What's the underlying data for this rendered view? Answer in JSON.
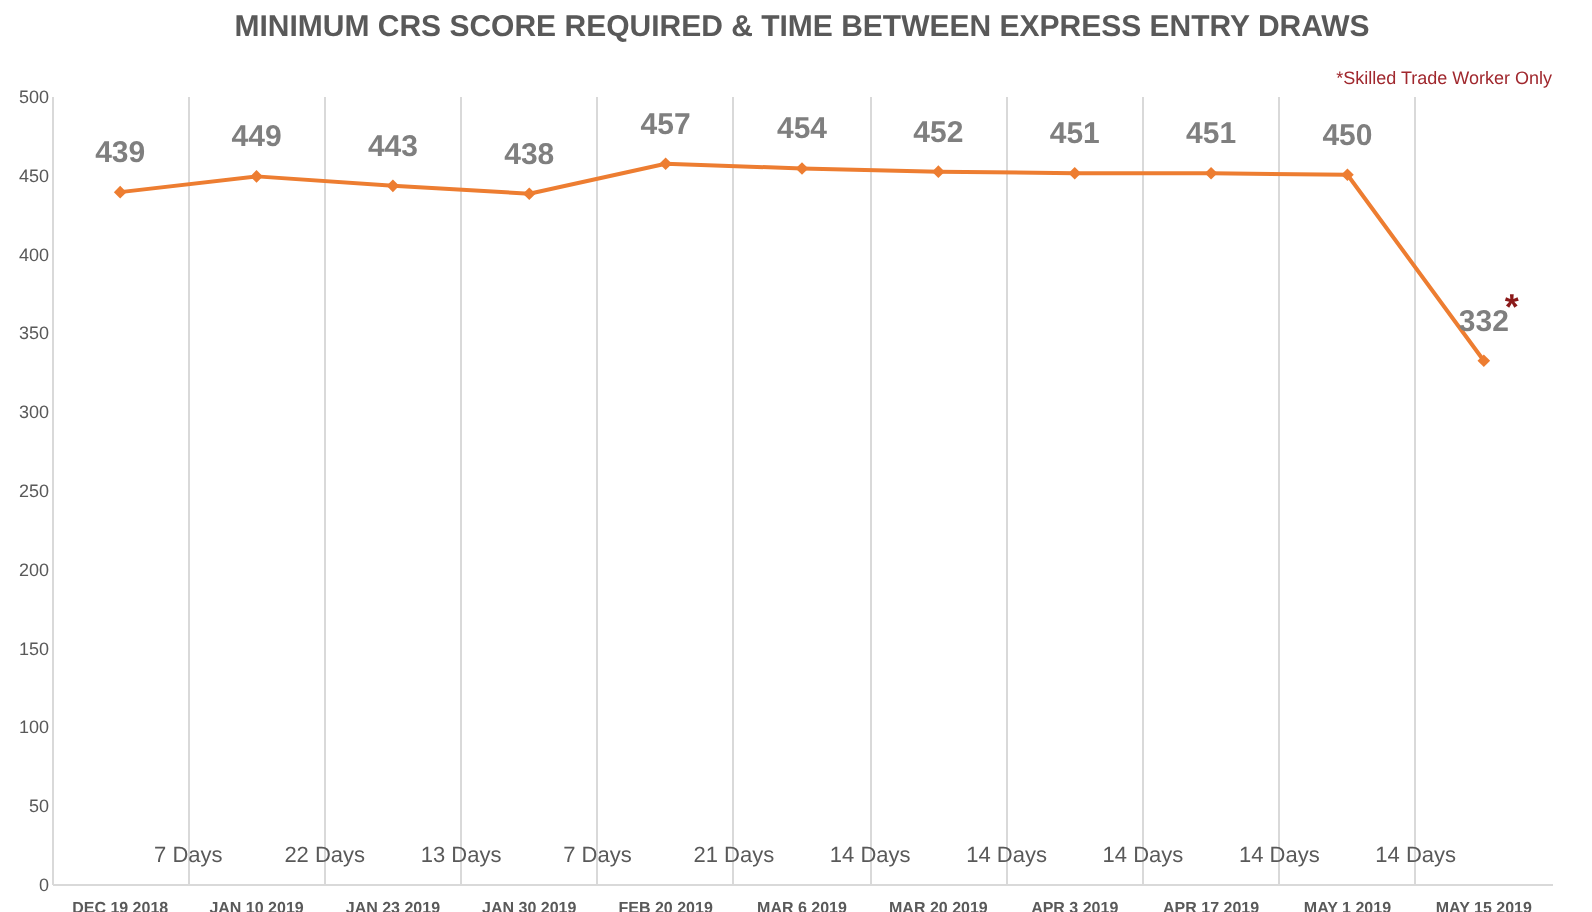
{
  "chart_data": {
    "type": "line",
    "title": "MINIMUM CRS SCORE REQUIRED & TIME BETWEEN EXPRESS ENTRY DRAWS",
    "categories": [
      "DEC 19 2018",
      "JAN 10 2019",
      "JAN 23 2019",
      "JAN 30 2019",
      "FEB 20 2019",
      "MAR 6 2019",
      "MAR 20 2019",
      "APR 3 2019",
      "APR 17 2019",
      "MAY 1 2019",
      "MAY 15 2019"
    ],
    "series": [
      {
        "color": "#ed7d31",
        "values": [
          439,
          449,
          443,
          438,
          457,
          454,
          452,
          451,
          451,
          450,
          332
        ]
      }
    ],
    "ylim": [
      0,
      500
    ],
    "yticks": [
      0,
      50,
      100,
      150,
      200,
      250,
      300,
      350,
      400,
      450,
      500
    ],
    "grid": "x",
    "marker": "diamond",
    "line_style": "solid",
    "data_labels": true,
    "annotations": [
      "*Skilled Trade Worker Only",
      "7 Days",
      "22 Days",
      "13 Days",
      "7 Days",
      "21 Days",
      "14 Days",
      "14 Days",
      "14 Days",
      "14 Days",
      "14 Days",
      {
        "text": "*",
        "x": "MAY 15 2019",
        "y": 332
      }
    ]
  }
}
